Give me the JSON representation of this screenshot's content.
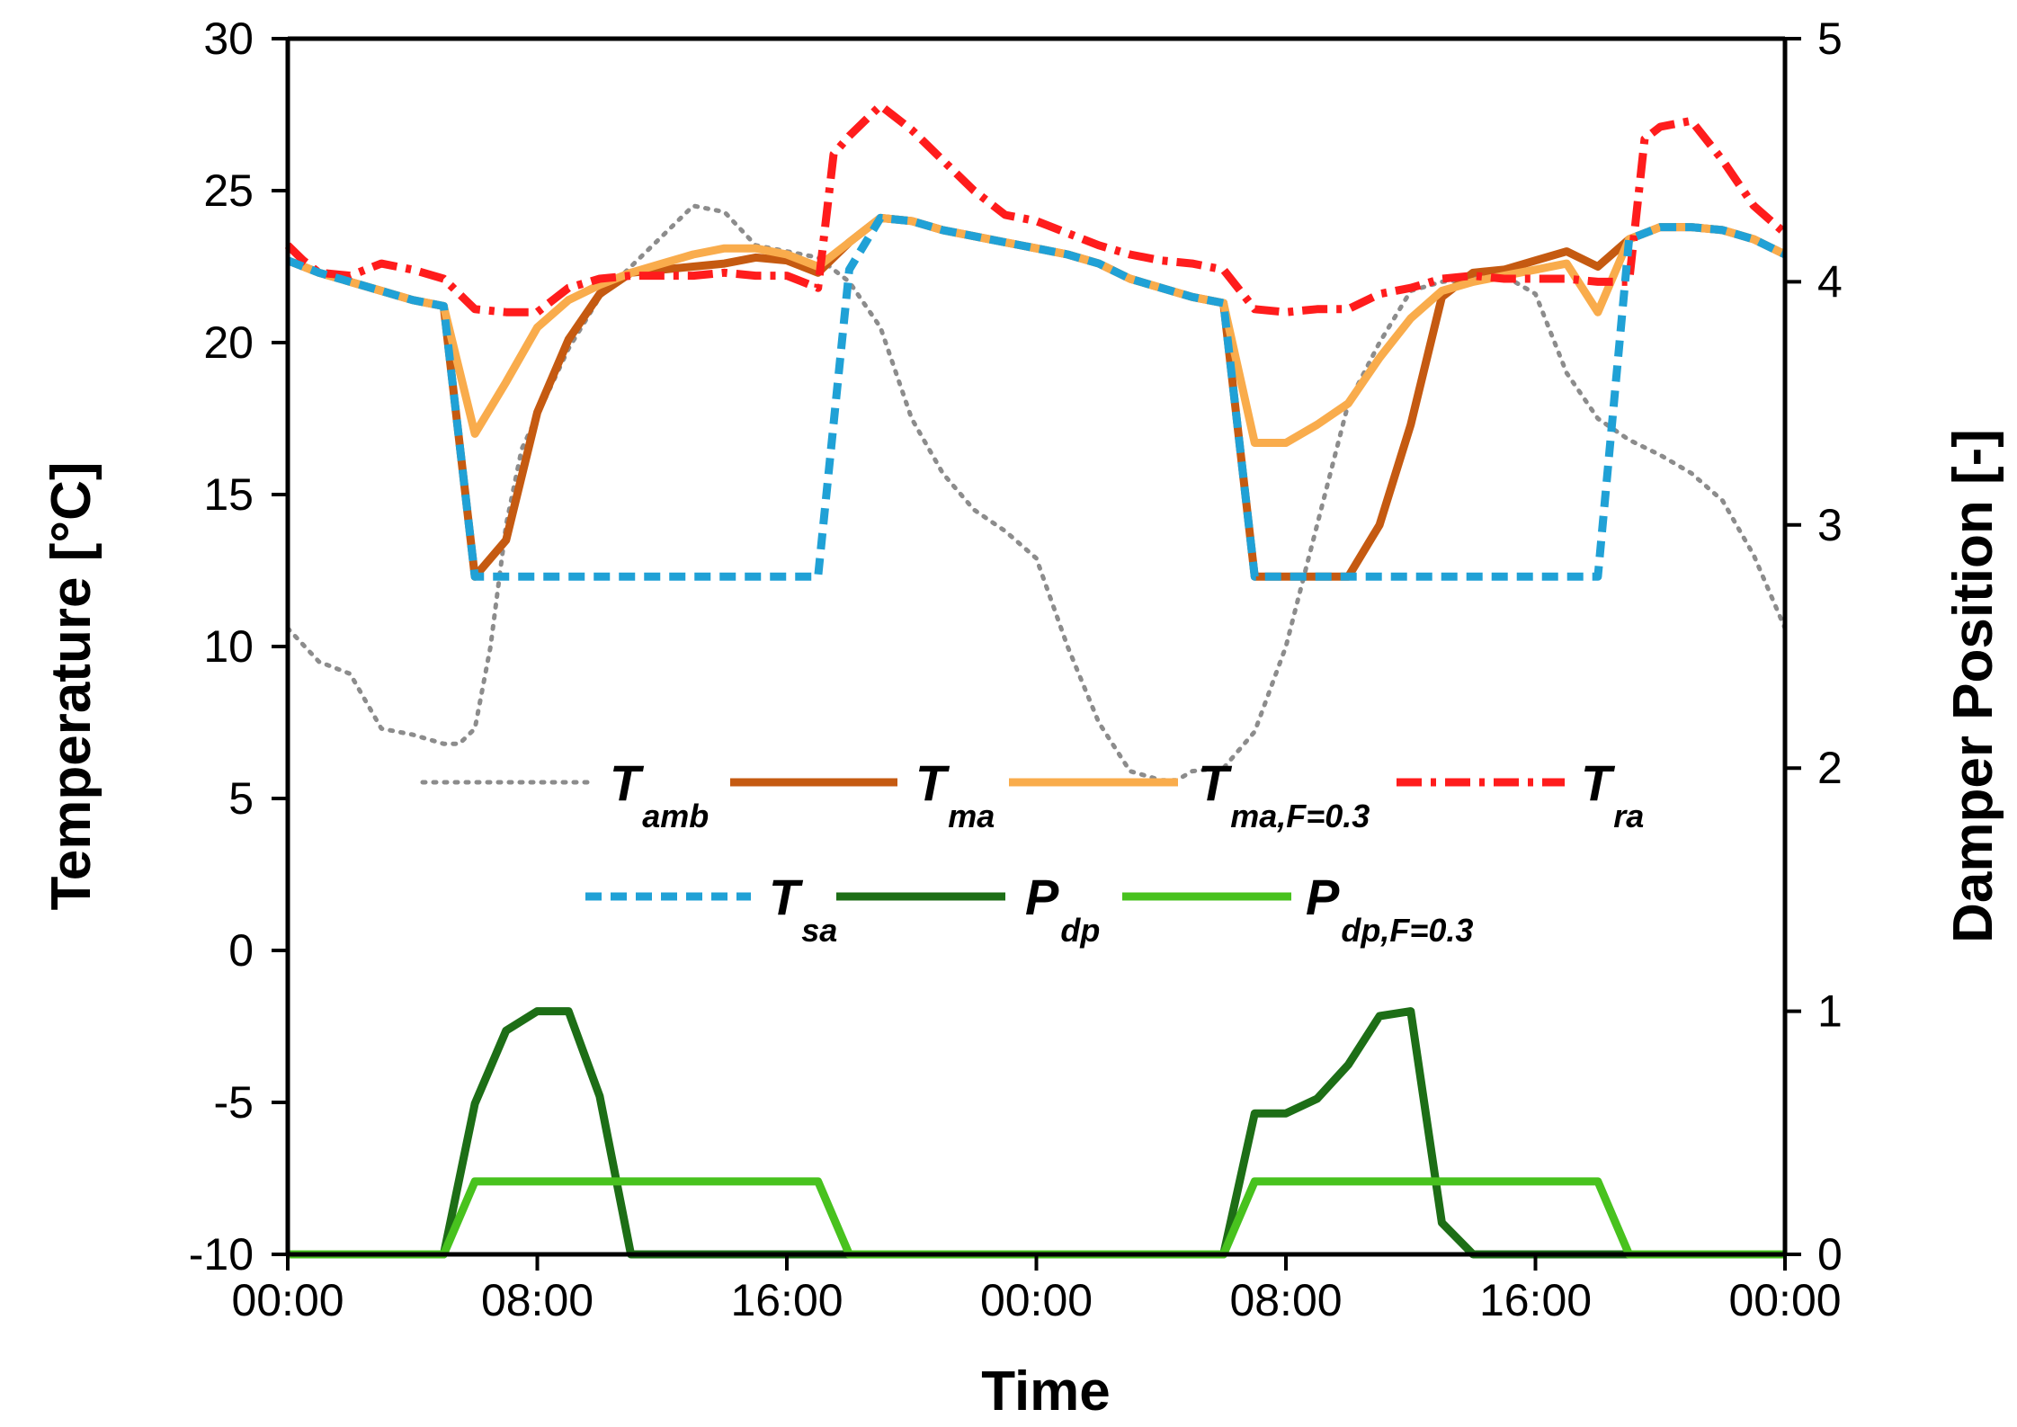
{
  "chart_data": {
    "type": "line",
    "title": "",
    "xlabel": "Time",
    "ylabel_left": "Temperature [°C]",
    "ylabel_right": "Damper Position [-]",
    "xlim_hours": [
      0,
      48
    ],
    "ylim_left": [
      -10,
      30
    ],
    "ylim_right": [
      0,
      5
    ],
    "x_ticks": [
      0,
      8,
      16,
      24,
      32,
      40,
      48
    ],
    "x_tick_labels": [
      "00:00",
      "08:00",
      "16:00",
      "00:00",
      "08:00",
      "16:00",
      "00:00"
    ],
    "y_ticks_left": [
      -10,
      -5,
      0,
      5,
      10,
      15,
      20,
      25,
      30
    ],
    "y_tick_labels_left": [
      "-10",
      "-5",
      "0",
      "5",
      "10",
      "15",
      "20",
      "25",
      "30"
    ],
    "y_ticks_right": [
      0,
      1,
      2,
      3,
      4,
      5
    ],
    "y_tick_labels_right": [
      "0",
      "1",
      "2",
      "3",
      "4",
      "5"
    ],
    "grid": false,
    "legend_position": "center",
    "series": [
      {
        "name": "T_amb",
        "main": "T",
        "sub": "amb",
        "axis": "left",
        "color": "#8c8c8c",
        "style": "dotted",
        "x": [
          0,
          1,
          2,
          3,
          4,
          5,
          5.5,
          6,
          6.5,
          7,
          7.5,
          8,
          9,
          10,
          11,
          12,
          13,
          14,
          15,
          16,
          17,
          18,
          19,
          20,
          21,
          22,
          23,
          24,
          25,
          26,
          27,
          28,
          28.5,
          29,
          30,
          31,
          32,
          33,
          34,
          35,
          36,
          37,
          38,
          39,
          40,
          41,
          42,
          43,
          44,
          45,
          46,
          47,
          48
        ],
        "y": [
          10.6,
          9.5,
          9.1,
          7.3,
          7.1,
          6.8,
          6.8,
          7.3,
          10.0,
          14.0,
          16.5,
          17.6,
          19.8,
          21.5,
          22.5,
          23.5,
          24.5,
          24.3,
          23.2,
          23.0,
          22.8,
          22.0,
          20.5,
          17.5,
          15.7,
          14.5,
          13.8,
          12.9,
          10.0,
          7.5,
          5.9,
          5.6,
          5.6,
          5.9,
          6.0,
          7.2,
          10.0,
          14.0,
          18.0,
          20.0,
          21.7,
          22.0,
          22.1,
          22.2,
          21.6,
          19.0,
          17.5,
          16.8,
          16.3,
          15.7,
          14.8,
          13.0,
          10.6
        ]
      },
      {
        "name": "T_ma",
        "main": "T",
        "sub": "ma",
        "axis": "left",
        "color": "#c55a11",
        "style": "solid",
        "x": [
          0,
          1,
          2,
          3,
          4,
          5,
          6,
          7,
          8,
          9,
          10,
          11,
          12,
          13,
          14,
          15,
          16,
          17,
          18,
          19,
          20,
          21,
          22,
          23,
          24,
          25,
          26,
          27,
          28,
          29,
          30,
          31,
          32,
          33,
          34,
          35,
          36,
          37,
          38,
          39,
          40,
          41,
          42,
          43,
          44,
          45,
          46,
          47,
          48
        ],
        "y": [
          22.7,
          22.3,
          22.0,
          21.7,
          21.4,
          21.2,
          12.3,
          13.5,
          17.7,
          20.1,
          21.6,
          22.3,
          22.4,
          22.5,
          22.6,
          22.8,
          22.7,
          22.3,
          23.3,
          24.1,
          24.0,
          23.7,
          23.5,
          23.3,
          23.1,
          22.9,
          22.6,
          22.1,
          21.8,
          21.5,
          21.3,
          12.3,
          12.3,
          12.3,
          12.3,
          14.0,
          17.3,
          21.5,
          22.3,
          22.4,
          22.7,
          23.0,
          22.5,
          23.4,
          23.8,
          23.8,
          23.7,
          23.4,
          22.9
        ]
      },
      {
        "name": "T_ma,F=0.3",
        "main": "T",
        "sub": "ma,F=0.3",
        "axis": "left",
        "color": "#f9ac4c",
        "style": "solid",
        "x": [
          0,
          1,
          2,
          3,
          4,
          5,
          6,
          7,
          8,
          9,
          10,
          11,
          12,
          13,
          14,
          15,
          16,
          17,
          18,
          19,
          20,
          21,
          22,
          23,
          24,
          25,
          26,
          27,
          28,
          29,
          30,
          31,
          32,
          33,
          34,
          35,
          36,
          37,
          38,
          39,
          40,
          41,
          42,
          43,
          44,
          45,
          46,
          47,
          48
        ],
        "y": [
          22.7,
          22.3,
          22.0,
          21.7,
          21.4,
          21.2,
          17.0,
          18.7,
          20.5,
          21.4,
          21.9,
          22.3,
          22.6,
          22.9,
          23.1,
          23.1,
          22.9,
          22.5,
          23.3,
          24.1,
          24.0,
          23.7,
          23.5,
          23.3,
          23.1,
          22.9,
          22.6,
          22.1,
          21.8,
          21.5,
          21.3,
          16.7,
          16.7,
          17.3,
          18.0,
          19.5,
          20.8,
          21.7,
          22.0,
          22.2,
          22.4,
          22.6,
          21.0,
          23.4,
          23.8,
          23.8,
          23.7,
          23.4,
          22.9
        ]
      },
      {
        "name": "T_ra",
        "main": "T",
        "sub": "ra",
        "axis": "left",
        "color": "#ff1c1c",
        "style": "dashdot",
        "x": [
          0,
          0.5,
          1,
          2,
          3,
          4,
          5,
          6,
          7,
          8,
          9,
          10,
          11,
          12,
          13,
          14,
          15,
          16,
          17,
          17.5,
          18,
          19,
          20,
          21,
          22,
          23,
          24,
          25,
          26,
          27,
          28,
          29,
          30,
          31,
          32,
          33,
          34,
          35,
          36,
          37,
          38,
          39,
          40,
          41,
          42,
          43,
          43.5,
          44,
          45,
          46,
          47,
          48
        ],
        "y": [
          23.2,
          22.7,
          22.3,
          22.2,
          22.6,
          22.4,
          22.1,
          21.1,
          21.0,
          21.0,
          21.8,
          22.1,
          22.2,
          22.2,
          22.2,
          22.3,
          22.2,
          22.2,
          21.8,
          26.2,
          26.8,
          27.8,
          27.0,
          26.0,
          25.0,
          24.2,
          24.0,
          23.6,
          23.2,
          22.9,
          22.7,
          22.6,
          22.4,
          21.1,
          21.0,
          21.1,
          21.1,
          21.6,
          21.8,
          22.1,
          22.2,
          22.1,
          22.1,
          22.1,
          22.0,
          22.0,
          26.7,
          27.1,
          27.3,
          26.0,
          24.5,
          23.6
        ]
      },
      {
        "name": "T_sa",
        "main": "T",
        "sub": "sa",
        "axis": "left",
        "color": "#20a1d6",
        "style": "dashed",
        "x": [
          0,
          1,
          2,
          3,
          4,
          5,
          6,
          7,
          8,
          9,
          10,
          11,
          12,
          13,
          14,
          15,
          16,
          17,
          18,
          19,
          20,
          21,
          22,
          23,
          24,
          25,
          26,
          27,
          28,
          29,
          30,
          31,
          32,
          33,
          34,
          35,
          36,
          37,
          38,
          39,
          40,
          41,
          42,
          43,
          44,
          45,
          46,
          47,
          48
        ],
        "y": [
          22.7,
          22.3,
          22.0,
          21.7,
          21.4,
          21.2,
          12.3,
          12.3,
          12.3,
          12.3,
          12.3,
          12.3,
          12.3,
          12.3,
          12.3,
          12.3,
          12.3,
          12.3,
          22.4,
          24.1,
          24.0,
          23.7,
          23.5,
          23.3,
          23.1,
          22.9,
          22.6,
          22.1,
          21.8,
          21.5,
          21.3,
          12.3,
          12.3,
          12.3,
          12.3,
          12.3,
          12.3,
          12.3,
          12.3,
          12.3,
          12.3,
          12.3,
          12.3,
          23.4,
          23.8,
          23.8,
          23.7,
          23.4,
          22.9
        ]
      },
      {
        "name": "P_dp",
        "main": "P",
        "sub": "dp",
        "axis": "right",
        "color": "#1d6e16",
        "style": "solid",
        "x": [
          0,
          1,
          2,
          3,
          4,
          5,
          6,
          7,
          8,
          9,
          10,
          11,
          12,
          13,
          14,
          15,
          16,
          17,
          18,
          19,
          20,
          21,
          22,
          23,
          24,
          25,
          26,
          27,
          28,
          29,
          30,
          31,
          32,
          33,
          34,
          35,
          36,
          37,
          38,
          39,
          40,
          41,
          42,
          43,
          44,
          45,
          46,
          47,
          48
        ],
        "y": [
          0,
          0,
          0,
          0,
          0,
          0,
          0.62,
          0.92,
          1.0,
          1.0,
          0.65,
          0,
          0,
          0,
          0,
          0,
          0,
          0,
          0,
          0,
          0,
          0,
          0,
          0,
          0,
          0,
          0,
          0,
          0,
          0,
          0,
          0.58,
          0.58,
          0.64,
          0.78,
          0.98,
          1.0,
          0.13,
          0,
          0,
          0,
          0,
          0,
          0,
          0,
          0,
          0,
          0,
          0
        ]
      },
      {
        "name": "P_dp,F=0.3",
        "main": "P",
        "sub": "dp,F=0.3",
        "axis": "right",
        "color": "#48c21e",
        "style": "solid",
        "x": [
          0,
          5,
          6,
          17,
          18,
          30,
          31,
          42,
          43,
          48
        ],
        "y": [
          0,
          0,
          0.3,
          0.3,
          0,
          0,
          0.3,
          0.3,
          0,
          0
        ]
      }
    ]
  }
}
